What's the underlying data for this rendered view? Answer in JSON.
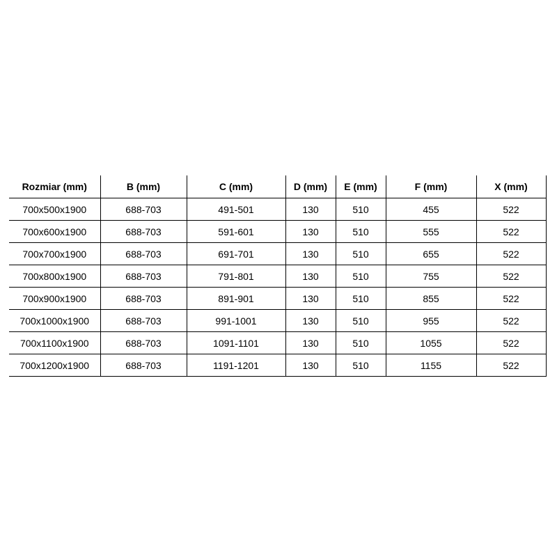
{
  "table": {
    "columns": [
      "Rozmiar (mm)",
      "B (mm)",
      "C (mm)",
      "D (mm)",
      "E (mm)",
      "F (mm)",
      "X (mm)"
    ],
    "rows": [
      [
        "700x500x1900",
        "688-703",
        "491-501",
        "130",
        "510",
        "455",
        "522"
      ],
      [
        "700x600x1900",
        "688-703",
        "591-601",
        "130",
        "510",
        "555",
        "522"
      ],
      [
        "700x700x1900",
        "688-703",
        "691-701",
        "130",
        "510",
        "655",
        "522"
      ],
      [
        "700x800x1900",
        "688-703",
        "791-801",
        "130",
        "510",
        "755",
        "522"
      ],
      [
        "700x900x1900",
        "688-703",
        "891-901",
        "130",
        "510",
        "855",
        "522"
      ],
      [
        "700x1000x1900",
        "688-703",
        "991-1001",
        "130",
        "510",
        "955",
        "522"
      ],
      [
        "700x1100x1900",
        "688-703",
        "1091-1101",
        "130",
        "510",
        "1055",
        "522"
      ],
      [
        "700x1200x1900",
        "688-703",
        "1191-1201",
        "130",
        "510",
        "1155",
        "522"
      ]
    ]
  },
  "colors": {
    "border": "#000000",
    "text": "#000000",
    "background": "#ffffff"
  }
}
